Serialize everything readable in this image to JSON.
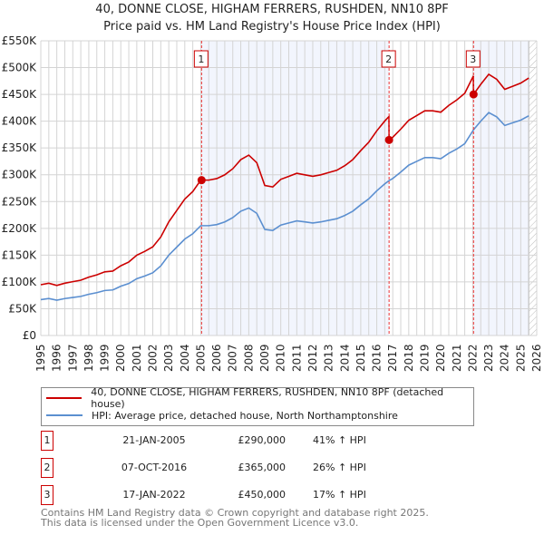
{
  "chart_data": {
    "type": "line",
    "title": "40, DONNE CLOSE, HIGHAM FERRERS, RUSHDEN, NN10 8PF",
    "subtitle": "Price paid vs. HM Land Registry's House Price Index (HPI)",
    "xlim": [
      1995,
      2026
    ],
    "ylim": [
      0,
      550000
    ],
    "yticks": [
      0,
      50000,
      100000,
      150000,
      200000,
      250000,
      300000,
      350000,
      400000,
      450000,
      500000,
      550000
    ],
    "ytick_labels": [
      "£0",
      "£50K",
      "£100K",
      "£150K",
      "£200K",
      "£250K",
      "£300K",
      "£350K",
      "£400K",
      "£450K",
      "£500K",
      "£550K"
    ],
    "xticks": [
      "1995",
      "1996",
      "1997",
      "1998",
      "1999",
      "2000",
      "2001",
      "2002",
      "2003",
      "2004",
      "2005",
      "2006",
      "2007",
      "2008",
      "2009",
      "2010",
      "2011",
      "2012",
      "2013",
      "2014",
      "2015",
      "2016",
      "2017",
      "2018",
      "2019",
      "2020",
      "2021",
      "2022",
      "2023",
      "2024",
      "2025",
      "2026"
    ],
    "grid": true,
    "series": [
      {
        "name": "40, DONNE CLOSE, HIGHAM FERRERS, RUSHDEN, NN10 8PF (detached house)",
        "color": "#cc0000",
        "derived_from": "hpi scaled at each sale"
      },
      {
        "name": "HPI: Average price, detached house, North Northamptonshire",
        "color": "#5b8fd0",
        "x": [
          1995,
          1995.5,
          1996,
          1996.5,
          1997,
          1997.5,
          1998,
          1998.5,
          1999,
          1999.5,
          2000,
          2000.5,
          2001,
          2001.5,
          2002,
          2002.5,
          2003,
          2003.5,
          2004,
          2004.5,
          2005,
          2005.5,
          2006,
          2006.5,
          2007,
          2007.5,
          2008,
          2008.5,
          2009,
          2009.5,
          2010,
          2010.5,
          2011,
          2011.5,
          2012,
          2012.5,
          2013,
          2013.5,
          2014,
          2014.5,
          2015,
          2015.5,
          2016,
          2016.5,
          2016.77,
          2017,
          2017.5,
          2018,
          2018.5,
          2019,
          2019.5,
          2020,
          2020.5,
          2021,
          2021.5,
          2022.05,
          2022.5,
          2023,
          2023.5,
          2024,
          2024.5,
          2025,
          2025.5
        ],
        "y": [
          67000,
          69000,
          66000,
          69000,
          71000,
          73000,
          77000,
          80000,
          84000,
          85000,
          92000,
          97000,
          106000,
          111000,
          117000,
          130000,
          150000,
          165000,
          180000,
          190000,
          205000,
          205000,
          207000,
          212000,
          220000,
          232000,
          238000,
          228000,
          198000,
          196000,
          206000,
          210000,
          214000,
          212000,
          210000,
          212000,
          215000,
          218000,
          224000,
          232000,
          244000,
          255000,
          270000,
          283000,
          289000,
          293000,
          305000,
          318000,
          325000,
          332000,
          332000,
          330000,
          340000,
          348000,
          358000,
          384000,
          400000,
          416000,
          408000,
          392000,
          397000,
          402000,
          410000
        ]
      }
    ],
    "sales": [
      {
        "num": "1",
        "date": "21-JAN-2005",
        "x": 2005.05,
        "price": "£290,000",
        "value": 290000,
        "hpi": "41% ↑ HPI"
      },
      {
        "num": "2",
        "date": "07-OCT-2016",
        "x": 2016.77,
        "price": "£365,000",
        "value": 365000,
        "hpi": "26% ↑ HPI"
      },
      {
        "num": "3",
        "date": "17-JAN-2022",
        "x": 2022.05,
        "price": "£450,000",
        "value": 450000,
        "hpi": "17% ↑ HPI"
      }
    ],
    "shaded": [
      [
        2005.05,
        2016.77
      ],
      [
        2022.05,
        2025.5
      ]
    ],
    "forecast_from": 2025.5
  },
  "legend": {
    "property": "40, DONNE CLOSE, HIGHAM FERRERS, RUSHDEN, NN10 8PF (detached house)",
    "hpi": "HPI: Average price, detached house, North Northamptonshire"
  },
  "footer": {
    "line1": "Contains HM Land Registry data © Crown copyright and database right 2025.",
    "line2": "This data is licensed under the Open Government Licence v3.0."
  }
}
